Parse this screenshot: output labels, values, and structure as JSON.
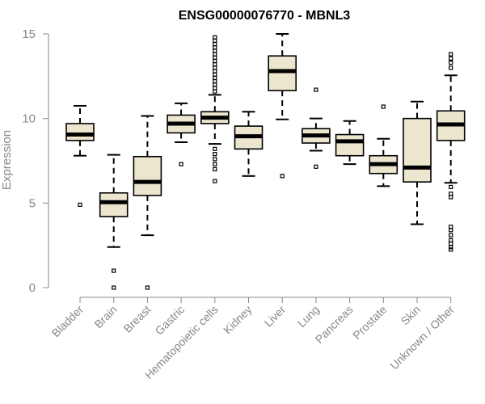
{
  "chart_data": {
    "type": "boxplot",
    "title": "ENSG00000076770 - MBNL3",
    "xlabel": "",
    "ylabel": "Expression",
    "ylim": [
      0,
      15
    ],
    "yticks": [
      0,
      5,
      10,
      15
    ],
    "categories": [
      "Bladder",
      "Brain",
      "Breast",
      "Gastric",
      "Hematopoietic cells",
      "Kidney",
      "Liver",
      "Lung",
      "Pancreas",
      "Prostate",
      "Skin",
      "Unknown / Other"
    ],
    "boxes": [
      {
        "name": "Bladder",
        "whisker_low": 7.8,
        "q1": 8.7,
        "median": 9.05,
        "q3": 9.7,
        "whisker_high": 10.75,
        "outliers": [
          4.9
        ]
      },
      {
        "name": "Brain",
        "whisker_low": 2.4,
        "q1": 4.2,
        "median": 5.05,
        "q3": 5.6,
        "whisker_high": 7.85,
        "outliers": [
          1.0,
          0.0
        ]
      },
      {
        "name": "Breast",
        "whisker_low": 3.1,
        "q1": 5.45,
        "median": 6.25,
        "q3": 7.75,
        "whisker_high": 10.15,
        "outliers": [
          0.0
        ]
      },
      {
        "name": "Gastric",
        "whisker_low": 8.6,
        "q1": 9.15,
        "median": 9.7,
        "q3": 10.2,
        "whisker_high": 10.9,
        "outliers": [
          7.3
        ]
      },
      {
        "name": "Hematopoietic cells",
        "whisker_low": 8.5,
        "q1": 9.7,
        "median": 10.05,
        "q3": 10.4,
        "whisker_high": 11.4,
        "outliers": [
          6.3,
          7.0,
          7.3,
          7.6,
          7.9,
          8.2,
          11.6,
          11.8,
          12.0,
          12.2,
          12.4,
          12.6,
          12.8,
          13.0,
          13.2,
          13.4,
          13.6,
          13.8,
          14.0,
          14.2,
          14.4,
          14.6,
          14.8
        ]
      },
      {
        "name": "Kidney",
        "whisker_low": 6.6,
        "q1": 8.2,
        "median": 8.95,
        "q3": 9.55,
        "whisker_high": 10.4,
        "outliers": []
      },
      {
        "name": "Liver",
        "whisker_low": 9.95,
        "q1": 11.65,
        "median": 12.8,
        "q3": 13.7,
        "whisker_high": 15.0,
        "outliers": [
          6.6
        ]
      },
      {
        "name": "Lung",
        "whisker_low": 8.1,
        "q1": 8.55,
        "median": 9.0,
        "q3": 9.4,
        "whisker_high": 10.0,
        "outliers": [
          11.7,
          7.15
        ]
      },
      {
        "name": "Pancreas",
        "whisker_low": 7.3,
        "q1": 7.8,
        "median": 8.65,
        "q3": 9.05,
        "whisker_high": 9.85,
        "outliers": []
      },
      {
        "name": "Prostate",
        "whisker_low": 6.0,
        "q1": 6.75,
        "median": 7.3,
        "q3": 7.8,
        "whisker_high": 8.8,
        "outliers": [
          10.7
        ]
      },
      {
        "name": "Skin",
        "whisker_low": 3.75,
        "q1": 6.25,
        "median": 7.1,
        "q3": 10.0,
        "whisker_high": 11.0,
        "outliers": []
      },
      {
        "name": "Unknown / Other",
        "whisker_low": 6.2,
        "q1": 8.7,
        "median": 9.65,
        "q3": 10.45,
        "whisker_high": 12.55,
        "outliers": [
          13.0,
          13.3,
          13.55,
          13.8,
          5.95,
          5.55,
          5.35,
          3.6,
          3.4,
          3.1,
          2.8,
          2.6,
          2.4,
          2.25
        ]
      }
    ],
    "box_color": "#ede6cf",
    "grid": false,
    "legend": "none"
  }
}
